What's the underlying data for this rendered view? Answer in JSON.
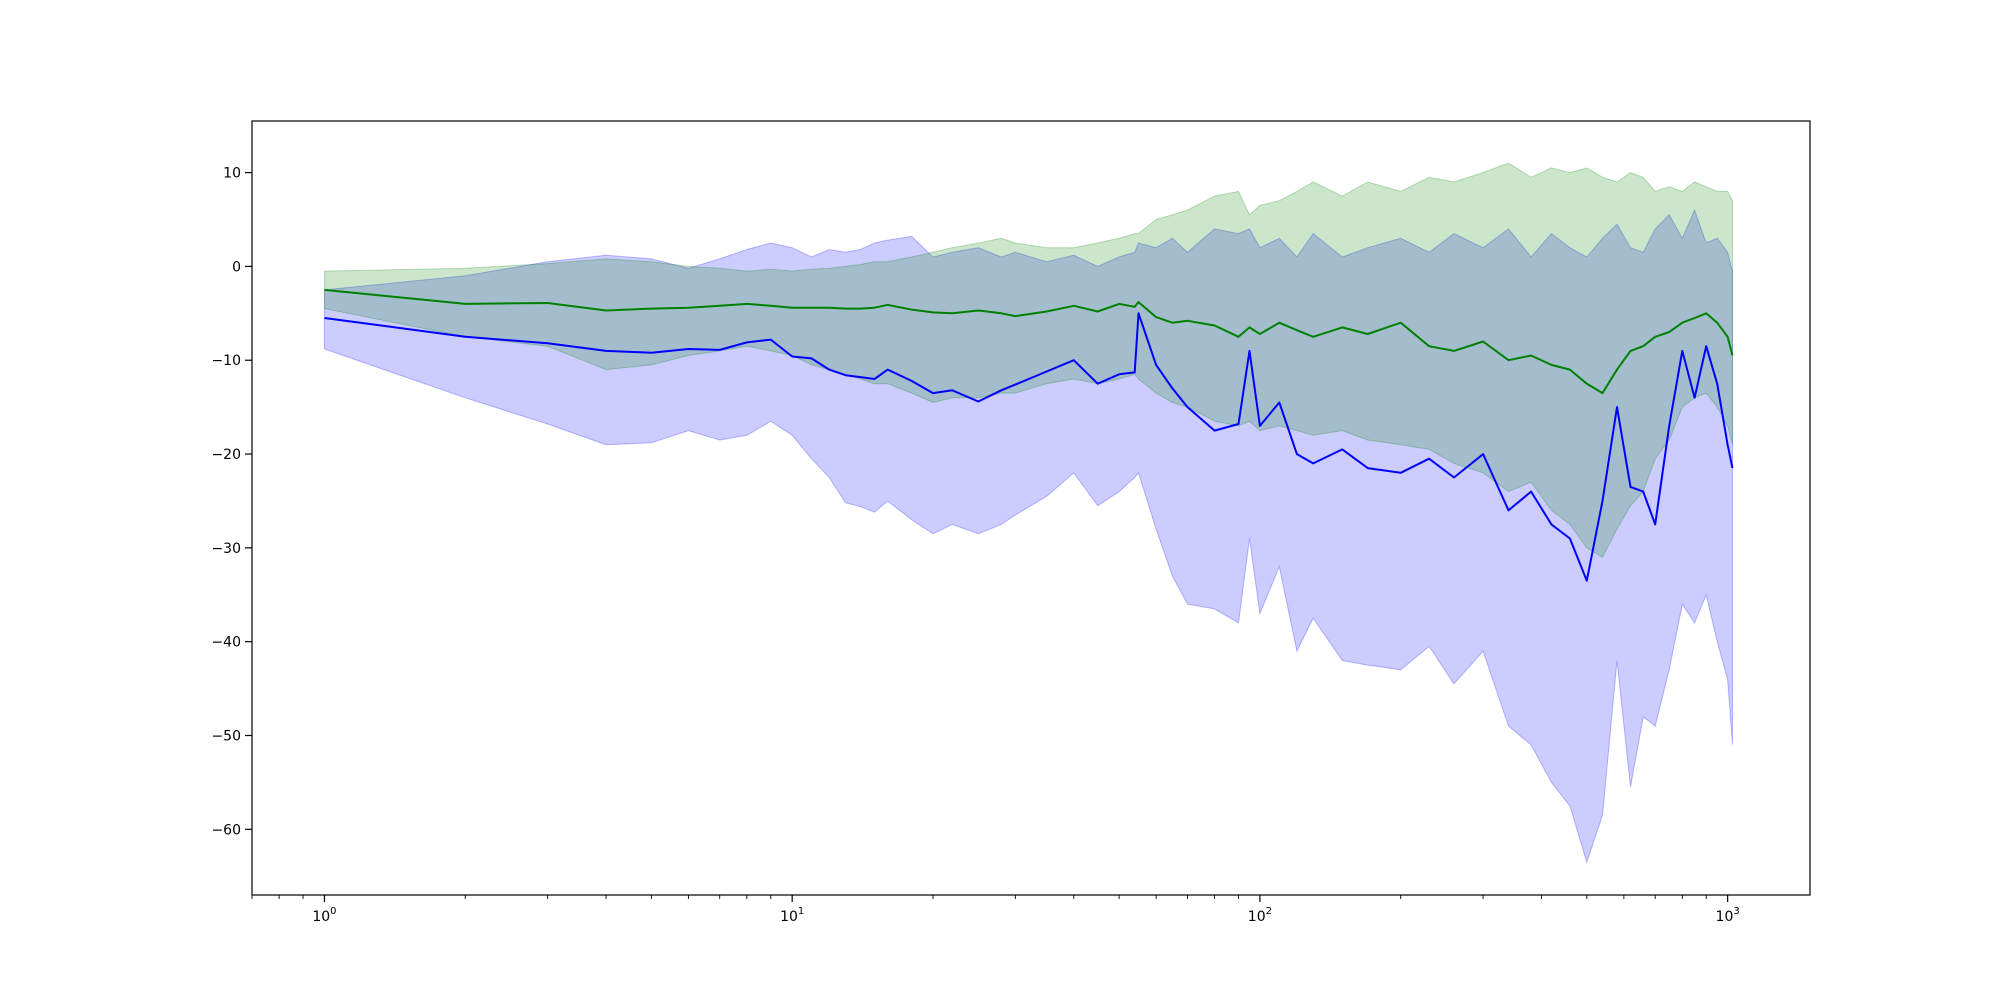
{
  "chart_data": {
    "type": "line",
    "title": "",
    "xlabel": "",
    "ylabel": "",
    "xscale": "log",
    "xlim": [
      0.7,
      1500
    ],
    "ylim": [
      -67,
      15.5
    ],
    "grid": false,
    "legend": "none",
    "x_tick_labels": [
      {
        "base": "10",
        "exp": "0",
        "value": 1
      },
      {
        "base": "10",
        "exp": "1",
        "value": 10
      },
      {
        "base": "10",
        "exp": "2",
        "value": 100
      },
      {
        "base": "10",
        "exp": "3",
        "value": 1000
      }
    ],
    "y_ticks": [
      10,
      0,
      -10,
      -20,
      -30,
      -40,
      -50,
      -60
    ],
    "y_tick_labels": [
      "10",
      "0",
      "−10",
      "−20",
      "−30",
      "−40",
      "−50",
      "−60"
    ],
    "series": [
      {
        "color": "#0000ff",
        "band_color": "#0000ff",
        "x": [
          1,
          2,
          3,
          4,
          5,
          6,
          7,
          8,
          9,
          10,
          11,
          12,
          13,
          14,
          15,
          16,
          18,
          20,
          22,
          25,
          28,
          30,
          35,
          40,
          45,
          50,
          54,
          55,
          60,
          65,
          70,
          80,
          90,
          95,
          100,
          110,
          120,
          130,
          150,
          170,
          200,
          230,
          260,
          300,
          340,
          380,
          420,
          460,
          500,
          540,
          580,
          620,
          660,
          700,
          750,
          800,
          850,
          900,
          950,
          1000,
          1024
        ],
        "mean": [
          -5.5,
          -7.5,
          -8.2,
          -9.0,
          -9.2,
          -8.8,
          -8.9,
          -8.1,
          -7.8,
          -9.6,
          -9.8,
          -11.0,
          -11.6,
          -11.8,
          -12.0,
          -11.0,
          -12.2,
          -13.5,
          -13.2,
          -14.4,
          -13.2,
          -12.6,
          -11.2,
          -10.0,
          -12.5,
          -11.5,
          -11.3,
          -5.0,
          -10.5,
          -13.0,
          -15.0,
          -17.5,
          -16.8,
          -9.0,
          -17.0,
          -14.5,
          -20.0,
          -21.0,
          -19.5,
          -21.5,
          -22.0,
          -20.5,
          -22.5,
          -20.0,
          -26.0,
          -24.0,
          -27.5,
          -29.0,
          -33.5,
          -25.0,
          -15.0,
          -23.5,
          -24.0,
          -27.5,
          -17.0,
          -9.0,
          -14.0,
          -8.5,
          -12.5,
          -19.0,
          -21.5
        ],
        "upper": [
          -2.5,
          -1.0,
          0.5,
          1.2,
          0.8,
          -0.2,
          0.8,
          1.8,
          2.5,
          2.0,
          1.0,
          1.8,
          1.5,
          1.8,
          2.5,
          2.8,
          3.2,
          1.0,
          1.5,
          2.0,
          1.0,
          1.5,
          0.5,
          1.2,
          0.0,
          1.0,
          1.5,
          2.5,
          2.0,
          3.0,
          1.5,
          4.0,
          3.5,
          4.0,
          2.0,
          3.0,
          1.0,
          3.5,
          1.0,
          2.0,
          3.0,
          1.5,
          3.5,
          2.0,
          4.0,
          1.0,
          3.5,
          2.0,
          1.0,
          3.0,
          4.5,
          2.0,
          1.5,
          4.0,
          5.5,
          3.0,
          6.0,
          2.5,
          3.0,
          1.5,
          -0.5
        ],
        "lower": [
          -8.8,
          -14.0,
          -16.8,
          -19.0,
          -18.8,
          -17.5,
          -18.5,
          -18.0,
          -16.5,
          -18.0,
          -20.5,
          -22.5,
          -25.2,
          -25.6,
          -26.2,
          -25.0,
          -27.0,
          -28.5,
          -27.5,
          -28.5,
          -27.5,
          -26.5,
          -24.5,
          -22.0,
          -25.5,
          -24.0,
          -22.5,
          -22.0,
          -28.0,
          -33.0,
          -36.0,
          -36.5,
          -38.0,
          -29.0,
          -37.0,
          -32.0,
          -41.0,
          -37.5,
          -42.0,
          -42.5,
          -43.0,
          -40.5,
          -44.5,
          -41.0,
          -49.0,
          -51.0,
          -55.0,
          -57.5,
          -63.5,
          -58.5,
          -42.0,
          -55.5,
          -48.0,
          -49.0,
          -43.0,
          -36.0,
          -38.0,
          -35.0,
          -40.0,
          -44.0,
          -51.0
        ]
      },
      {
        "color": "#008000",
        "band_color": "#008000",
        "x": [
          1,
          2,
          3,
          4,
          5,
          6,
          7,
          8,
          9,
          10,
          11,
          12,
          13,
          14,
          15,
          16,
          18,
          20,
          22,
          25,
          28,
          30,
          35,
          40,
          45,
          50,
          54,
          55,
          60,
          65,
          70,
          80,
          90,
          95,
          100,
          110,
          120,
          130,
          150,
          170,
          200,
          230,
          260,
          300,
          340,
          380,
          420,
          460,
          500,
          540,
          580,
          620,
          660,
          700,
          750,
          800,
          850,
          900,
          950,
          1000,
          1024
        ],
        "mean": [
          -2.5,
          -4.0,
          -3.9,
          -4.7,
          -4.5,
          -4.4,
          -4.2,
          -4.0,
          -4.2,
          -4.4,
          -4.4,
          -4.4,
          -4.5,
          -4.5,
          -4.4,
          -4.1,
          -4.6,
          -4.9,
          -5.0,
          -4.7,
          -5.0,
          -5.3,
          -4.8,
          -4.2,
          -4.8,
          -4.0,
          -4.3,
          -3.8,
          -5.4,
          -6.0,
          -5.8,
          -6.3,
          -7.5,
          -6.5,
          -7.2,
          -6.0,
          -6.8,
          -7.5,
          -6.5,
          -7.2,
          -6.0,
          -8.5,
          -9.0,
          -8.0,
          -10.0,
          -9.5,
          -10.5,
          -11.0,
          -12.5,
          -13.5,
          -11.0,
          -9.0,
          -8.5,
          -7.5,
          -7.0,
          -6.0,
          -5.5,
          -5.0,
          -6.0,
          -7.5,
          -9.5
        ],
        "upper": [
          -0.5,
          -0.2,
          0.3,
          0.8,
          0.5,
          0.0,
          -0.2,
          -0.5,
          -0.3,
          -0.5,
          -0.3,
          -0.2,
          0.0,
          0.2,
          0.5,
          0.5,
          1.0,
          1.5,
          2.0,
          2.5,
          3.0,
          2.5,
          2.0,
          2.0,
          2.5,
          3.0,
          3.5,
          3.5,
          5.0,
          5.5,
          6.0,
          7.5,
          8.0,
          5.5,
          6.5,
          7.0,
          8.0,
          9.0,
          7.5,
          9.0,
          8.0,
          9.5,
          9.0,
          10.0,
          11.0,
          9.5,
          10.5,
          10.0,
          10.5,
          9.5,
          9.0,
          10.0,
          9.5,
          8.0,
          8.5,
          8.0,
          9.0,
          8.5,
          8.0,
          8.0,
          7.0
        ],
        "lower": [
          -4.5,
          -7.5,
          -8.5,
          -11.0,
          -10.5,
          -9.5,
          -9.0,
          -8.5,
          -9.0,
          -9.5,
          -10.5,
          -11.0,
          -11.5,
          -12.0,
          -12.5,
          -12.5,
          -13.5,
          -14.5,
          -14.0,
          -14.0,
          -13.5,
          -13.5,
          -12.5,
          -12.0,
          -12.5,
          -12.0,
          -11.5,
          -12.0,
          -13.5,
          -14.5,
          -15.0,
          -16.5,
          -17.0,
          -16.5,
          -17.5,
          -17.0,
          -17.5,
          -18.0,
          -17.5,
          -18.5,
          -19.0,
          -19.5,
          -21.0,
          -22.0,
          -24.0,
          -23.0,
          -26.0,
          -27.5,
          -30.0,
          -31.0,
          -28.0,
          -25.5,
          -24.0,
          -20.5,
          -18.5,
          -15.0,
          -14.0,
          -13.5,
          -15.0,
          -17.0,
          -19.0
        ]
      }
    ]
  }
}
